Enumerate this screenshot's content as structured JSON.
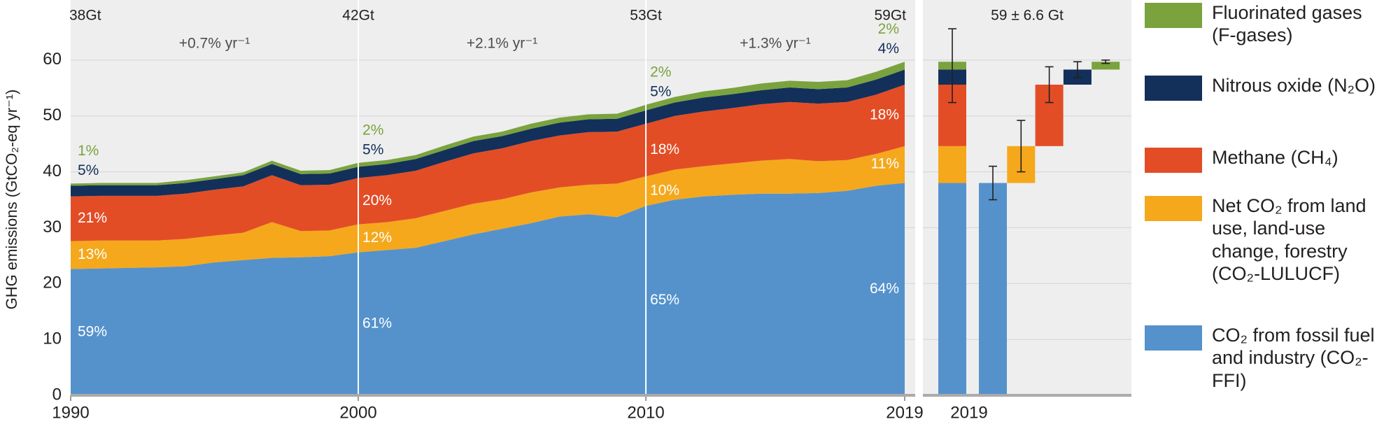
{
  "chart_data": {
    "type": "stacked-area",
    "y_label": "GHG emissions (GtCO₂-eq yr⁻¹)",
    "x": [
      1990,
      1991,
      1992,
      1993,
      1994,
      1995,
      1996,
      1997,
      1998,
      1999,
      2000,
      2001,
      2002,
      2003,
      2004,
      2005,
      2006,
      2007,
      2008,
      2009,
      2010,
      2011,
      2012,
      2013,
      2014,
      2015,
      2016,
      2017,
      2018,
      2019
    ],
    "xlim": [
      1990,
      2019
    ],
    "xticks": [
      1990,
      2000,
      2010,
      2019
    ],
    "ylim": [
      0,
      70
    ],
    "yticks": [
      0,
      10,
      20,
      30,
      40,
      50,
      60
    ],
    "grid": true,
    "series": [
      {
        "name": "CO₂ from fossil fuel and industry (CO₂-FFI)",
        "color": "#5592cc",
        "error": 3.0,
        "values": [
          22.6,
          22.7,
          22.8,
          22.9,
          23.1,
          23.8,
          24.2,
          24.6,
          24.7,
          24.9,
          25.6,
          26.0,
          26.4,
          27.6,
          28.8,
          29.8,
          30.8,
          32.0,
          32.4,
          31.9,
          33.9,
          35.0,
          35.6,
          35.9,
          36.1,
          36.1,
          36.2,
          36.6,
          37.5,
          38.0
        ]
      },
      {
        "name": "Net CO₂ from land use, land-use change, forestry (CO₂-LULUCF)",
        "color": "#f5a81c",
        "error": 4.6,
        "values": [
          5.0,
          5.0,
          4.9,
          4.8,
          4.9,
          4.8,
          4.9,
          6.4,
          4.7,
          4.6,
          5.0,
          5.0,
          5.3,
          5.4,
          5.5,
          5.3,
          5.5,
          5.2,
          5.3,
          6.0,
          5.3,
          5.4,
          5.4,
          5.6,
          5.9,
          6.2,
          5.7,
          5.5,
          5.7,
          6.6
        ]
      },
      {
        "name": "Methane (CH₄)",
        "color": "#e34d26",
        "error": 3.2,
        "values": [
          8.0,
          8.0,
          8.0,
          8.0,
          8.1,
          8.2,
          8.3,
          8.4,
          8.2,
          8.2,
          8.3,
          8.4,
          8.5,
          8.8,
          9.0,
          9.1,
          9.2,
          9.3,
          9.4,
          9.3,
          9.4,
          9.6,
          9.8,
          9.9,
          10.1,
          10.2,
          10.3,
          10.4,
          10.6,
          11.0
        ]
      },
      {
        "name": "Nitrous oxide (N₂O)",
        "color": "#13305a",
        "error": 1.4,
        "values": [
          1.9,
          1.9,
          1.9,
          1.9,
          1.9,
          1.9,
          2.0,
          2.0,
          2.0,
          2.0,
          2.0,
          2.0,
          2.1,
          2.1,
          2.2,
          2.2,
          2.2,
          2.3,
          2.3,
          2.3,
          2.4,
          2.4,
          2.5,
          2.5,
          2.5,
          2.6,
          2.6,
          2.6,
          2.7,
          2.7
        ]
      },
      {
        "name": "Fluorinated gases (F-gases)",
        "color": "#7aa33e",
        "error": 0.3,
        "values": [
          0.4,
          0.4,
          0.4,
          0.4,
          0.5,
          0.5,
          0.5,
          0.6,
          0.6,
          0.6,
          0.7,
          0.7,
          0.7,
          0.8,
          0.8,
          0.8,
          0.9,
          0.9,
          0.9,
          0.9,
          1.0,
          1.0,
          1.1,
          1.1,
          1.2,
          1.2,
          1.3,
          1.3,
          1.4,
          1.4
        ]
      }
    ],
    "totals": [
      {
        "x": 1990,
        "label": "38Gt"
      },
      {
        "x": 2000,
        "label": "42Gt"
      },
      {
        "x": 2010,
        "label": "53Gt"
      },
      {
        "x": 2019,
        "label": "59Gt"
      }
    ],
    "growth_rates": [
      {
        "from": 1990,
        "to": 2000,
        "label": "+0.7% yr⁻¹"
      },
      {
        "from": 2000,
        "to": 2010,
        "label": "+2.1% yr⁻¹"
      },
      {
        "from": 2010,
        "to": 2019,
        "label": "+1.3% yr⁻¹"
      }
    ],
    "shares": [
      {
        "x": 1990,
        "labels": [
          "59%",
          "13%",
          "21%",
          "5%",
          "1%"
        ]
      },
      {
        "x": 2000,
        "labels": [
          "61%",
          "12%",
          "20%",
          "5%",
          "2%"
        ]
      },
      {
        "x": 2010,
        "labels": [
          "65%",
          "10%",
          "18%",
          "5%",
          "2%"
        ]
      },
      {
        "x": 2019,
        "labels": [
          "64%",
          "11%",
          "18%",
          "4%",
          "2%"
        ]
      }
    ],
    "waterfall": {
      "title": "59 ± 6.6 Gt",
      "category": "2019",
      "total": 59,
      "total_error": 6.6
    }
  }
}
